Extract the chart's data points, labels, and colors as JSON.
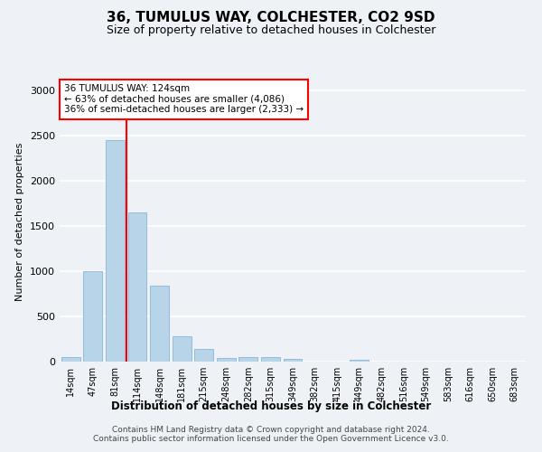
{
  "title": "36, TUMULUS WAY, COLCHESTER, CO2 9SD",
  "subtitle": "Size of property relative to detached houses in Colchester",
  "xlabel": "Distribution of detached houses by size in Colchester",
  "ylabel": "Number of detached properties",
  "categories": [
    "14sqm",
    "47sqm",
    "81sqm",
    "114sqm",
    "148sqm",
    "181sqm",
    "215sqm",
    "248sqm",
    "282sqm",
    "315sqm",
    "349sqm",
    "382sqm",
    "415sqm",
    "449sqm",
    "482sqm",
    "516sqm",
    "549sqm",
    "583sqm",
    "616sqm",
    "650sqm",
    "683sqm"
  ],
  "values": [
    55,
    1000,
    2450,
    1650,
    840,
    280,
    140,
    45,
    55,
    50,
    30,
    0,
    0,
    25,
    0,
    0,
    0,
    0,
    0,
    0,
    0
  ],
  "bar_color": "#b8d4e8",
  "bar_edgecolor": "#7aaed4",
  "property_line_label": "36 TUMULUS WAY: 124sqm",
  "annotation_line1": "← 63% of detached houses are smaller (4,086)",
  "annotation_line2": "36% of semi-detached houses are larger (2,333) →",
  "ylim": [
    0,
    3100
  ],
  "yticks": [
    0,
    500,
    1000,
    1500,
    2000,
    2500,
    3000
  ],
  "bg_color": "#eef2f7",
  "grid_color": "#ffffff",
  "footer_line1": "Contains HM Land Registry data © Crown copyright and database right 2024.",
  "footer_line2": "Contains public sector information licensed under the Open Government Licence v3.0."
}
